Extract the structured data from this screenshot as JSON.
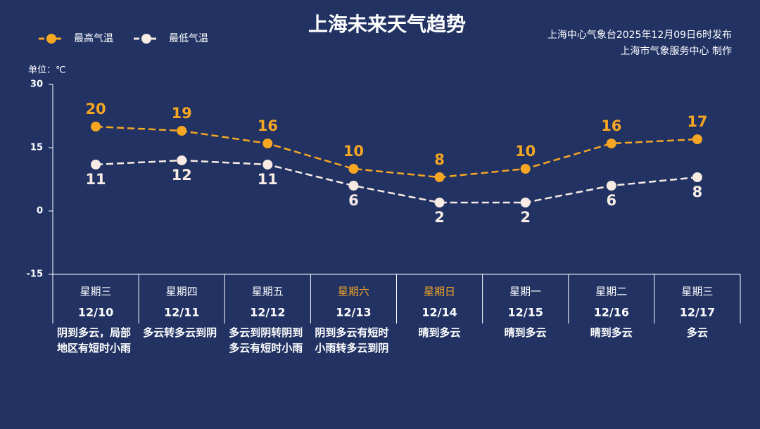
{
  "chart_data": {
    "type": "line",
    "title": "上海未来天气趋势",
    "source": [
      "上海中心气象台2025年12月09日6时发布",
      "上海市气象服务中心 制作"
    ],
    "unit_label": "单位：℃",
    "categories": [
      "12/10",
      "12/11",
      "12/12",
      "12/13",
      "12/14",
      "12/15",
      "12/16",
      "12/17"
    ],
    "weekdays": [
      "星期三",
      "星期四",
      "星期五",
      "星期六",
      "星期日",
      "星期一",
      "星期二",
      "星期三"
    ],
    "weekday_colors": [
      "#ffffff",
      "#ffffff",
      "#ffffff",
      "#f5a623",
      "#f5a623",
      "#ffffff",
      "#ffffff",
      "#ffffff"
    ],
    "weather": [
      "阴到多云，局部地区有短时小雨",
      "多云转多云到阴",
      "多云到阴转阴到多云有短时小雨",
      "阴到多云有短时小雨转多云到阴",
      "晴到多云",
      "晴到多云",
      "晴到多云",
      "多云"
    ],
    "series": [
      {
        "name": "最高气温",
        "color": "#f5a623",
        "values": [
          20,
          19,
          16,
          10,
          8,
          10,
          16,
          17
        ]
      },
      {
        "name": "最低气温",
        "color": "#f7ebe3",
        "values": [
          11,
          12,
          11,
          6,
          2,
          2,
          6,
          8
        ]
      }
    ],
    "ylim": [
      -15,
      30
    ],
    "yticks": [
      -15,
      0,
      15,
      30
    ]
  }
}
